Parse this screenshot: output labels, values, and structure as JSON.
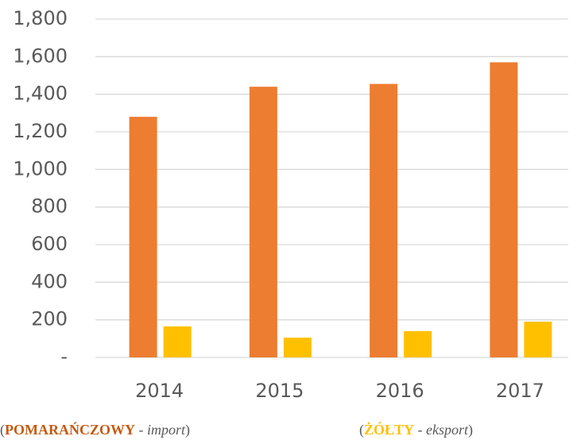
{
  "chart_data": {
    "type": "bar",
    "categories": [
      "2014",
      "2015",
      "2016",
      "2017"
    ],
    "series": [
      {
        "name": "import",
        "color_label": "POMARAŃCZOWY",
        "color": "#ed7d31",
        "values": [
          1280,
          1440,
          1455,
          1570
        ]
      },
      {
        "name": "eksport",
        "color_label": "ŻÓŁTY",
        "color": "#ffc000",
        "values": [
          165,
          105,
          140,
          190
        ]
      }
    ],
    "legend_separators": {
      "open": "(",
      "mid": " - ",
      "close": ")"
    },
    "ylim": [
      0,
      1800
    ],
    "yticks": [
      {
        "value": 0,
        "label": "-"
      },
      200,
      400,
      600,
      800,
      {
        "value": 1000,
        "label": "1,000"
      },
      {
        "value": 1200,
        "label": "1,200"
      },
      {
        "value": 1400,
        "label": "1,400"
      },
      {
        "value": 1600,
        "label": "1,600"
      },
      {
        "value": 1800,
        "label": "1,800"
      }
    ],
    "grid": true
  }
}
